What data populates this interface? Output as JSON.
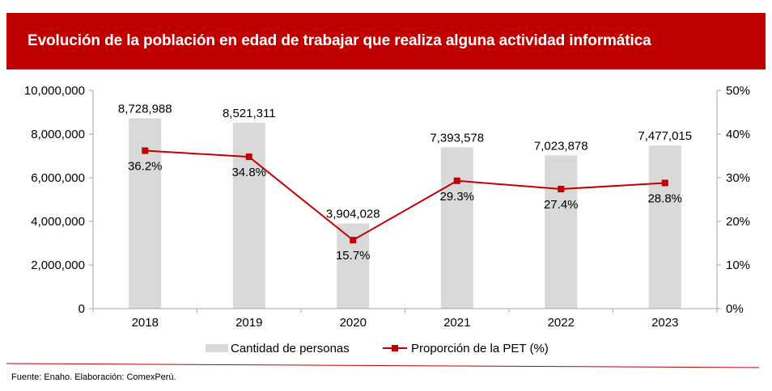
{
  "header": {
    "title": "Evolución de la población en edad de trabajar que realiza alguna actividad informática"
  },
  "footer": {
    "source": "Fuente: Enaho. Elaboración: ComexPerú."
  },
  "colors": {
    "header_bg": "#c00000",
    "bar": "#d9d9d9",
    "line": "#c00000",
    "axis": "#a6a6a6"
  },
  "chart_data": {
    "type": "bar",
    "title": "Evolución de la población en edad de trabajar que realiza alguna actividad informática",
    "categories": [
      "2018",
      "2019",
      "2020",
      "2021",
      "2022",
      "2023"
    ],
    "series": [
      {
        "name": "Cantidad de personas",
        "type": "bar",
        "axis": "left",
        "values": [
          8728988,
          8521311,
          3904028,
          7393578,
          7023878,
          7477015
        ],
        "labels": [
          "8,728,988",
          "8,521,311",
          "3,904,028",
          "7,393,578",
          "7,023,878",
          "7,477,015"
        ]
      },
      {
        "name": "Proporción de la PET (%)",
        "type": "line",
        "axis": "right",
        "values": [
          36.2,
          34.8,
          15.7,
          29.3,
          27.4,
          28.8
        ],
        "labels": [
          "36.2%",
          "34.8%",
          "15.7%",
          "29.3%",
          "27.4%",
          "28.8%"
        ]
      }
    ],
    "y_left": {
      "range": [
        0,
        10000000
      ],
      "ticks": [
        "0",
        "2,000,000",
        "4,000,000",
        "6,000,000",
        "8,000,000",
        "10,000,000"
      ]
    },
    "y_right": {
      "range": [
        0,
        50
      ],
      "ticks": [
        "0%",
        "10%",
        "20%",
        "30%",
        "40%",
        "50%"
      ]
    },
    "xlabel": "",
    "ylabel": "",
    "grid": false,
    "legend": {
      "placement": "bottom",
      "entries": [
        "Cantidad de personas",
        "Proporción de la PET (%)"
      ]
    }
  }
}
